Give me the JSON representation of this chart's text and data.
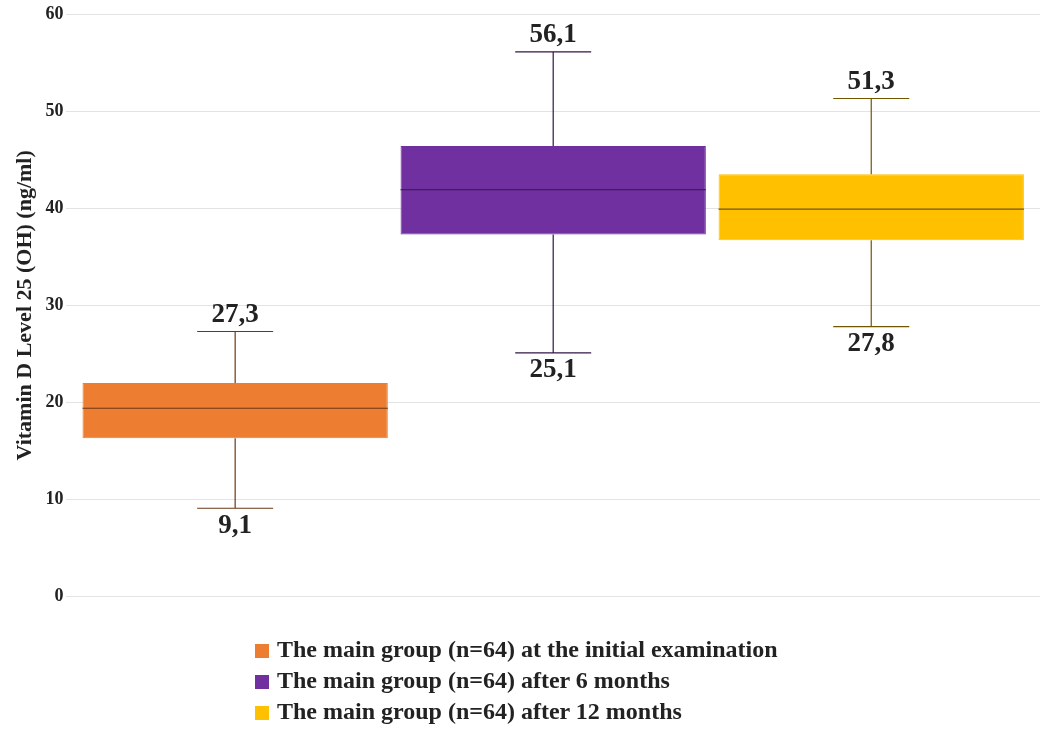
{
  "chart_data": {
    "type": "box",
    "ylabel": "Vitamin D Level 25 (OH) (ng/ml)",
    "categories": [
      null
    ],
    "series": [
      {
        "name": "The main group (n=64) at the initial examination",
        "color": "#ed7d31",
        "boxes": [
          {
            "low": 9.1,
            "q1": 16.3,
            "median": 19.4,
            "q3": 22.0,
            "high": 27.3
          }
        ]
      },
      {
        "name": "The main group (n=64) after 6 months",
        "color": "#7030a0",
        "boxes": [
          {
            "low": 25.1,
            "q1": 37.3,
            "median": 41.9,
            "q3": 46.4,
            "high": 56.1
          }
        ]
      },
      {
        "name": "The main group (n=64) after 12 months",
        "color": "#ffc000",
        "boxes": [
          {
            "low": 27.8,
            "q1": 36.7,
            "median": 39.9,
            "q3": 43.5,
            "high": 51.3
          }
        ]
      }
    ],
    "annotations": [
      {
        "text": "27,3",
        "y": 27.3
      },
      {
        "text": "9,1",
        "y": 9.1
      },
      {
        "text": "56,1",
        "y": 56.1
      },
      {
        "text": "25,1",
        "y": 25.1
      },
      {
        "text": "51,3",
        "y": 51.3
      },
      {
        "text": "27,8",
        "y": 27.8
      }
    ],
    "ylim": [
      0,
      60
    ],
    "yticks": [
      0,
      10,
      20,
      30,
      40,
      50,
      60
    ],
    "grid": "y",
    "legend": "bottom"
  }
}
